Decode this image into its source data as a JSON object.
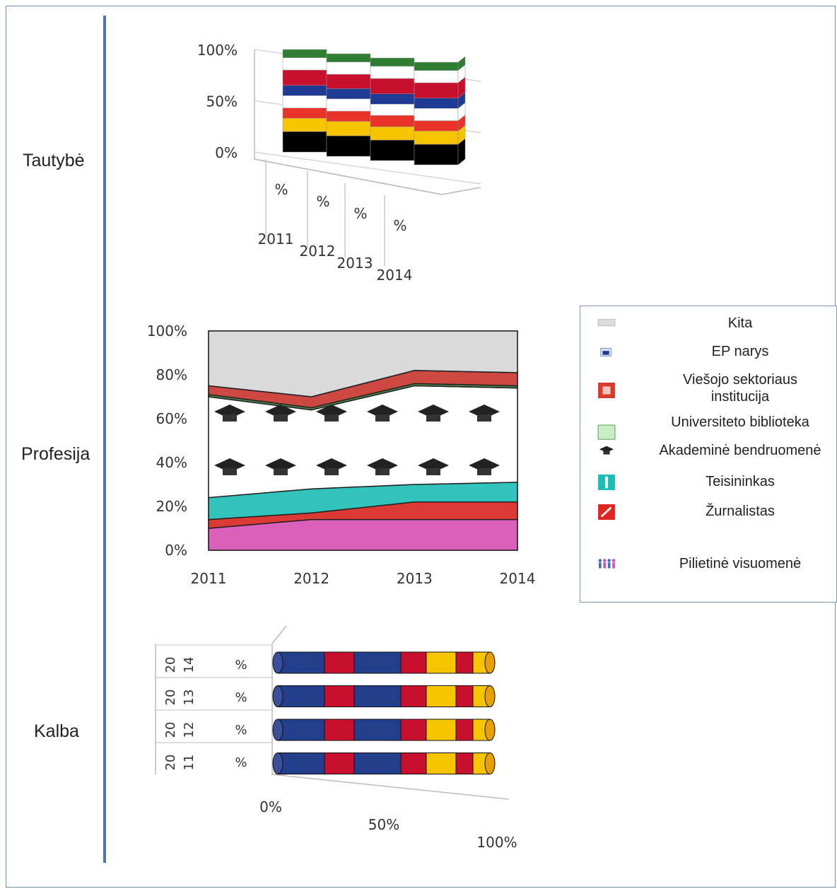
{
  "labels": {
    "tautybe": "Tautybė",
    "profesija": "Profesija",
    "kalba": "Kalba"
  },
  "chart_data": [
    {
      "type": "bar",
      "name": "tautybe",
      "stacked": true,
      "percent_stacked": true,
      "categories": [
        "2011",
        "2012",
        "2013",
        "2014"
      ],
      "category_suffix": "%",
      "ytick_labels": [
        "0%",
        "50%",
        "100%"
      ],
      "ylim": [
        0,
        100
      ],
      "grid": true,
      "segment_colors": [
        "#000000",
        "#f7c500",
        "#e8322a",
        "#ffffff",
        "#1f3a93",
        "#c8102e",
        "#ffffff",
        "#2e7d32"
      ],
      "values": [
        [
          20,
          13,
          10,
          12,
          10,
          15,
          12,
          8
        ],
        [
          20,
          14,
          10,
          12,
          10,
          14,
          12,
          8
        ],
        [
          20,
          13,
          11,
          11,
          10,
          15,
          12,
          8
        ],
        [
          20,
          13,
          10,
          12,
          10,
          15,
          12,
          8
        ]
      ]
    },
    {
      "type": "area",
      "name": "profesija",
      "stacked": true,
      "x": [
        "2011",
        "2012",
        "2013",
        "2014"
      ],
      "ytick_labels": [
        "0%",
        "20%",
        "40%",
        "60%",
        "80%",
        "100%"
      ],
      "ylim": [
        0,
        100
      ],
      "series": [
        {
          "name": "Pilietinė visuomenė",
          "values": [
            10,
            14,
            14,
            14
          ],
          "color": "#d64fb4"
        },
        {
          "name": "Žurnalistas",
          "values": [
            4,
            3,
            8,
            8
          ],
          "color": "#d6231e"
        },
        {
          "name": "Teisininkas",
          "values": [
            10,
            11,
            8,
            9
          ],
          "color": "#1cbdb5"
        },
        {
          "name": "Akademinė bendruomenė",
          "values": [
            46,
            36,
            45,
            43
          ],
          "color": "#ffffff"
        },
        {
          "name": "Universiteto biblioteka",
          "values": [
            1,
            1,
            1,
            1
          ],
          "color": "#3a7d3a"
        },
        {
          "name": "Viešojo sektoriaus institucija",
          "values": [
            4,
            5,
            6,
            6
          ],
          "color": "#c9342e"
        },
        {
          "name": "EP narys",
          "values": [
            0,
            0,
            0,
            0
          ],
          "color": "#1f3a93"
        },
        {
          "name": "Kita",
          "values": [
            25,
            30,
            18,
            19
          ],
          "color": "#d6d6d6"
        }
      ]
    },
    {
      "type": "bar",
      "name": "kalba",
      "orientation": "horizontal",
      "stacked": true,
      "percent_stacked": true,
      "categories": [
        "2014",
        "2013",
        "2012",
        "2011"
      ],
      "category_prefix": "20",
      "category_suffix": "%",
      "xtick_labels": [
        "0%",
        "50%",
        "100%"
      ],
      "xlim": [
        0,
        100
      ],
      "segment_colors": [
        "#233f8c",
        "#c8102e",
        "#233f8c",
        "#c8102e",
        "#f7c500",
        "#c8102e",
        "#f7c500"
      ],
      "values": [
        [
          22,
          14,
          22,
          12,
          14,
          8,
          8
        ],
        [
          22,
          14,
          22,
          12,
          14,
          8,
          8
        ],
        [
          22,
          14,
          22,
          12,
          14,
          8,
          8
        ],
        [
          22,
          14,
          22,
          12,
          14,
          8,
          8
        ]
      ]
    }
  ],
  "legend": {
    "items": [
      {
        "label": "Kita",
        "icon": "grey-dots-icon"
      },
      {
        "label": "EP narys",
        "icon": "ep-member-icon"
      },
      {
        "label": "Viešojo sektoriaus institucija",
        "icon": "public-sector-icon"
      },
      {
        "label": "Universiteto biblioteka",
        "icon": "library-icon"
      },
      {
        "label": "Akademinė bendruomenė",
        "icon": "graduation-cap-icon"
      },
      {
        "label": "Teisininkas",
        "icon": "lawyer-icon"
      },
      {
        "label": "Žurnalistas",
        "icon": "journalist-icon"
      },
      {
        "label": "Pilietinė visuomenė",
        "icon": "people-icon"
      }
    ]
  }
}
